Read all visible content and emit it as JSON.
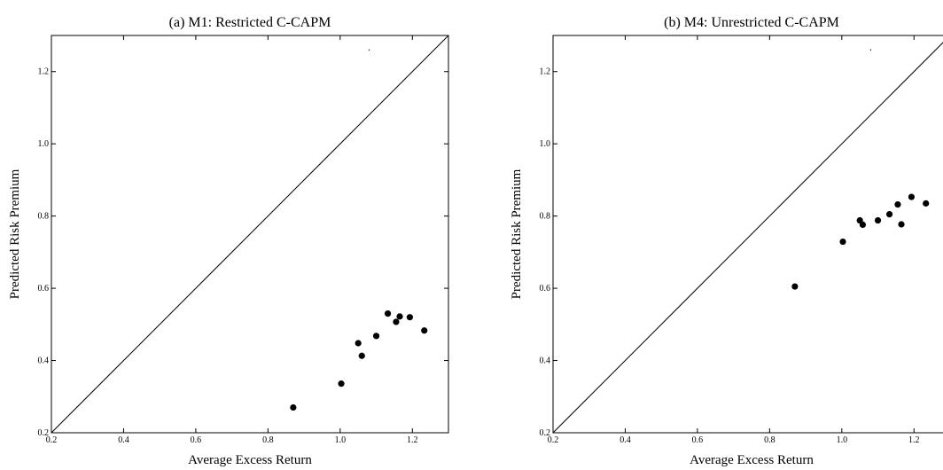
{
  "chart_data": [
    {
      "type": "scatter",
      "title": "(a) M1: Restricted C-CAPM",
      "xlabel": "Average Excess Return",
      "ylabel": "Predicted Risk Premium",
      "xlim": [
        0.2,
        1.3
      ],
      "ylim": [
        0.2,
        1.3
      ],
      "xticks": [
        0.2,
        0.4,
        0.6,
        0.8,
        1.0,
        1.2
      ],
      "xtick_labels": [
        "0.2",
        "0.4",
        "0.6",
        "0.8",
        "1.0",
        "1.2"
      ],
      "yticks": [
        0.2,
        0.4,
        0.6,
        0.8,
        1.0,
        1.2
      ],
      "ytick_labels": [
        "0.2",
        "0.4",
        "0.6",
        "0.8",
        "1.0",
        "1.2"
      ],
      "reference_line": "45-degree",
      "points": [
        {
          "x": 0.87,
          "y": 0.27
        },
        {
          "x": 1.003,
          "y": 0.336
        },
        {
          "x": 1.05,
          "y": 0.448
        },
        {
          "x": 1.06,
          "y": 0.413
        },
        {
          "x": 1.1,
          "y": 0.468
        },
        {
          "x": 1.132,
          "y": 0.53
        },
        {
          "x": 1.155,
          "y": 0.507
        },
        {
          "x": 1.165,
          "y": 0.522
        },
        {
          "x": 1.193,
          "y": 0.52
        },
        {
          "x": 1.233,
          "y": 0.483
        }
      ],
      "annotations": [
        {
          "x": 1.08,
          "y": 1.26,
          "text": "·"
        }
      ]
    },
    {
      "type": "scatter",
      "title": "(b) M4: Unrestricted C-CAPM",
      "xlabel": "Average Excess Return",
      "ylabel": "Predicted Risk Premium",
      "xlim": [
        0.2,
        1.3
      ],
      "ylim": [
        0.2,
        1.3
      ],
      "xticks": [
        0.2,
        0.4,
        0.6,
        0.8,
        1.0,
        1.2
      ],
      "xtick_labels": [
        "0.2",
        "0.4",
        "0.6",
        "0.8",
        "1.0",
        "1.2"
      ],
      "yticks": [
        0.2,
        0.4,
        0.6,
        0.8,
        1.0,
        1.2
      ],
      "ytick_labels": [
        "0.2",
        "0.4",
        "0.6",
        "0.8",
        "1.0",
        "1.2"
      ],
      "reference_line": "45-degree",
      "points": [
        {
          "x": 0.87,
          "y": 0.605
        },
        {
          "x": 1.003,
          "y": 0.729
        },
        {
          "x": 1.05,
          "y": 0.788
        },
        {
          "x": 1.058,
          "y": 0.776
        },
        {
          "x": 1.1,
          "y": 0.788
        },
        {
          "x": 1.132,
          "y": 0.805
        },
        {
          "x": 1.155,
          "y": 0.832
        },
        {
          "x": 1.165,
          "y": 0.777
        },
        {
          "x": 1.193,
          "y": 0.853
        },
        {
          "x": 1.233,
          "y": 0.835
        }
      ],
      "annotations": [
        {
          "x": 1.08,
          "y": 1.26,
          "text": "·"
        }
      ]
    }
  ]
}
